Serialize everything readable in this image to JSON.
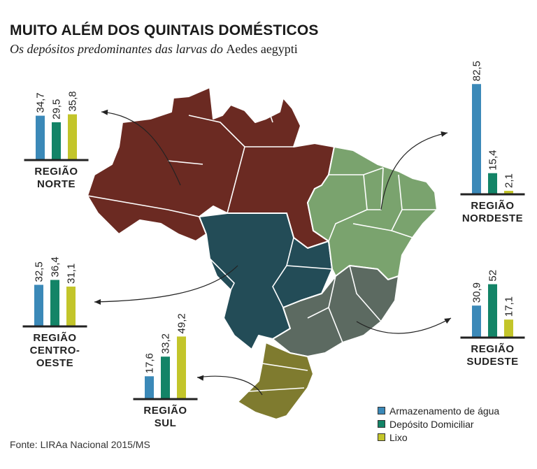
{
  "title": "MUITO ALÉM DOS QUINTAIS DOMÉSTICOS",
  "subtitle_pre": "Os depósitos predominantes das larvas do ",
  "subtitle_species": "Aedes aegypti",
  "source": "Fonte: LIRAa Nacional 2015/MS",
  "colors": {
    "agua": "#3b89b8",
    "domiciliar": "#138467",
    "lixo": "#c3c52a",
    "norte": "#6b2a22",
    "centro_oeste": "#234c57",
    "nordeste": "#7aa36e",
    "sudeste": "#5c6a61",
    "sul": "#7f7b2f"
  },
  "legend": [
    {
      "label": "Armazenamento de água",
      "color": "#3b89b8"
    },
    {
      "label": "Depósito Domiciliar",
      "color": "#138467"
    },
    {
      "label": "Lixo",
      "color": "#c3c52a"
    }
  ],
  "chart_data": {
    "type": "bar",
    "unit": "%",
    "series_names": [
      "Armazenamento de água",
      "Depósito Domiciliar",
      "Lixo"
    ],
    "regions": [
      {
        "name": "REGIÃO NORTE",
        "label_lines": [
          "REGIÃO",
          "NORTE"
        ],
        "values": [
          34.7,
          29.5,
          35.8
        ],
        "value_labels": [
          "34,7",
          "29,5",
          "35,8"
        ]
      },
      {
        "name": "REGIÃO NORDESTE",
        "label_lines": [
          "REGIÃO",
          "NORDESTE"
        ],
        "values": [
          82.5,
          15.4,
          2.1
        ],
        "value_labels": [
          "82,5",
          "15,4",
          "2,1"
        ]
      },
      {
        "name": "REGIÃO CENTRO-OESTE",
        "label_lines": [
          "REGIÃO",
          "CENTRO-",
          "OESTE"
        ],
        "values": [
          32.5,
          36.4,
          31.1
        ],
        "value_labels": [
          "32,5",
          "36,4",
          "31,1"
        ]
      },
      {
        "name": "REGIÃO SUDESTE",
        "label_lines": [
          "REGIÃO",
          "SUDESTE"
        ],
        "values": [
          30.9,
          52,
          17.1
        ],
        "value_labels": [
          "30,9",
          "52",
          "17,1"
        ]
      },
      {
        "name": "REGIÃO SUL",
        "label_lines": [
          "REGIÃO",
          "SUL"
        ],
        "values": [
          17.6,
          33.2,
          49.2
        ],
        "value_labels": [
          "17,6",
          "33,2",
          "49,2"
        ]
      }
    ]
  }
}
